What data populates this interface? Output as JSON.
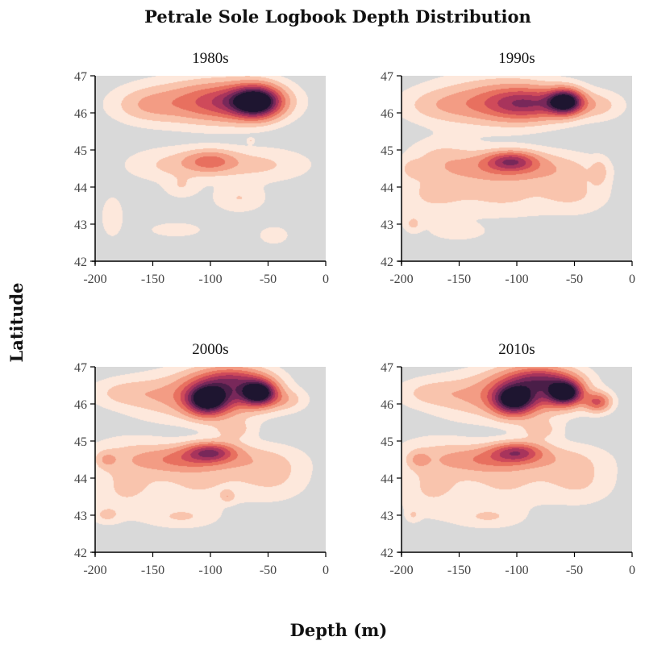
{
  "figure": {
    "title": "Petrale Sole Logbook Depth Distribution",
    "xlabel": "Depth (m)",
    "ylabel": "Latitude"
  },
  "colors": {
    "background": "#d9d9d9",
    "levels": [
      "#fde8dc",
      "#f9c4ad",
      "#f39c84",
      "#e8705f",
      "#cf4a5a",
      "#a8345c",
      "#78285a",
      "#4a1e48",
      "#1e1530"
    ]
  },
  "chart_data": [
    {
      "type": "heatmap",
      "title": "1980s",
      "xlim": [
        -200,
        0
      ],
      "ylim": [
        42,
        47
      ],
      "xticks": [
        -200,
        -150,
        -100,
        -50,
        0
      ],
      "yticks": [
        42,
        43,
        44,
        45,
        46,
        47
      ],
      "density": [
        {
          "x": -60,
          "y": 46.3,
          "sx": 14,
          "sy": 0.28,
          "w": 1.0
        },
        {
          "x": -80,
          "y": 46.3,
          "sx": 28,
          "sy": 0.35,
          "w": 0.45
        },
        {
          "x": -115,
          "y": 46.3,
          "sx": 35,
          "sy": 0.4,
          "w": 0.22
        },
        {
          "x": -155,
          "y": 46.2,
          "sx": 20,
          "sy": 0.3,
          "w": 0.14
        },
        {
          "x": -100,
          "y": 44.7,
          "sx": 15,
          "sy": 0.2,
          "w": 0.3
        },
        {
          "x": -130,
          "y": 44.6,
          "sx": 28,
          "sy": 0.3,
          "w": 0.14
        },
        {
          "x": -60,
          "y": 44.6,
          "sx": 30,
          "sy": 0.3,
          "w": 0.14
        },
        {
          "x": -125,
          "y": 44.0,
          "sx": 10,
          "sy": 0.2,
          "w": 0.1
        },
        {
          "x": -75,
          "y": 43.7,
          "sx": 15,
          "sy": 0.25,
          "w": 0.12
        },
        {
          "x": -185,
          "y": 43.2,
          "sx": 6,
          "sy": 0.35,
          "w": 0.12
        },
        {
          "x": -130,
          "y": 42.85,
          "sx": 14,
          "sy": 0.12,
          "w": 0.12
        },
        {
          "x": -45,
          "y": 42.7,
          "sx": 8,
          "sy": 0.15,
          "w": 0.12
        },
        {
          "x": -65,
          "y": 45.25,
          "sx": 2,
          "sy": 0.05,
          "w": 0.1
        }
      ]
    },
    {
      "type": "heatmap",
      "title": "1990s",
      "xlim": [
        -200,
        0
      ],
      "ylim": [
        42,
        47
      ],
      "xticks": [
        -200,
        -150,
        -100,
        -50,
        0
      ],
      "yticks": [
        42,
        43,
        44,
        45,
        46,
        47
      ],
      "density": [
        {
          "x": -58,
          "y": 46.3,
          "sx": 10,
          "sy": 0.22,
          "w": 1.0
        },
        {
          "x": -90,
          "y": 46.25,
          "sx": 25,
          "sy": 0.3,
          "w": 0.55
        },
        {
          "x": -120,
          "y": 46.3,
          "sx": 35,
          "sy": 0.45,
          "w": 0.25
        },
        {
          "x": -165,
          "y": 46.2,
          "sx": 25,
          "sy": 0.3,
          "w": 0.13
        },
        {
          "x": -30,
          "y": 46.2,
          "sx": 15,
          "sy": 0.25,
          "w": 0.15
        },
        {
          "x": -105,
          "y": 44.7,
          "sx": 15,
          "sy": 0.18,
          "w": 0.5
        },
        {
          "x": -120,
          "y": 44.5,
          "sx": 30,
          "sy": 0.3,
          "w": 0.25
        },
        {
          "x": -70,
          "y": 44.5,
          "sx": 30,
          "sy": 0.3,
          "w": 0.15
        },
        {
          "x": -165,
          "y": 44.8,
          "sx": 20,
          "sy": 0.35,
          "w": 0.12
        },
        {
          "x": -190,
          "y": 44.5,
          "sx": 6,
          "sy": 0.15,
          "w": 0.12
        },
        {
          "x": -175,
          "y": 43.8,
          "sx": 25,
          "sy": 0.5,
          "w": 0.12
        },
        {
          "x": -110,
          "y": 43.7,
          "sx": 30,
          "sy": 0.35,
          "w": 0.12
        },
        {
          "x": -50,
          "y": 43.8,
          "sx": 20,
          "sy": 0.35,
          "w": 0.12
        },
        {
          "x": -28,
          "y": 44.4,
          "sx": 5,
          "sy": 0.25,
          "w": 0.12
        },
        {
          "x": -190,
          "y": 43.0,
          "sx": 5,
          "sy": 0.15,
          "w": 0.12
        },
        {
          "x": -150,
          "y": 42.8,
          "sx": 15,
          "sy": 0.15,
          "w": 0.1
        }
      ]
    },
    {
      "type": "heatmap",
      "title": "2000s",
      "xlim": [
        -200,
        0
      ],
      "ylim": [
        42,
        47
      ],
      "xticks": [
        -200,
        -150,
        -100,
        -50,
        0
      ],
      "yticks": [
        42,
        43,
        44,
        45,
        46,
        47
      ],
      "density": [
        {
          "x": -58,
          "y": 46.3,
          "sx": 10,
          "sy": 0.22,
          "w": 1.0
        },
        {
          "x": -103,
          "y": 46.1,
          "sx": 12,
          "sy": 0.28,
          "w": 0.85
        },
        {
          "x": -85,
          "y": 46.35,
          "sx": 25,
          "sy": 0.4,
          "w": 0.55
        },
        {
          "x": -80,
          "y": 46.7,
          "sx": 18,
          "sy": 0.2,
          "w": 0.25
        },
        {
          "x": -130,
          "y": 46.2,
          "sx": 30,
          "sy": 0.4,
          "w": 0.2
        },
        {
          "x": -175,
          "y": 46.3,
          "sx": 20,
          "sy": 0.25,
          "w": 0.12
        },
        {
          "x": -35,
          "y": 46.1,
          "sx": 12,
          "sy": 0.2,
          "w": 0.15
        },
        {
          "x": -100,
          "y": 44.7,
          "sx": 15,
          "sy": 0.18,
          "w": 0.55
        },
        {
          "x": -125,
          "y": 44.5,
          "sx": 25,
          "sy": 0.25,
          "w": 0.3
        },
        {
          "x": -70,
          "y": 44.5,
          "sx": 30,
          "sy": 0.3,
          "w": 0.15
        },
        {
          "x": -170,
          "y": 44.6,
          "sx": 25,
          "sy": 0.35,
          "w": 0.12
        },
        {
          "x": -190,
          "y": 44.5,
          "sx": 6,
          "sy": 0.15,
          "w": 0.15
        },
        {
          "x": -80,
          "y": 45.3,
          "sx": 12,
          "sy": 0.2,
          "w": 0.15
        },
        {
          "x": -175,
          "y": 43.7,
          "sx": 20,
          "sy": 0.5,
          "w": 0.12
        },
        {
          "x": -110,
          "y": 43.8,
          "sx": 30,
          "sy": 0.4,
          "w": 0.12
        },
        {
          "x": -45,
          "y": 44.0,
          "sx": 20,
          "sy": 0.4,
          "w": 0.12
        },
        {
          "x": -85,
          "y": 43.5,
          "sx": 4,
          "sy": 0.1,
          "w": 0.15
        },
        {
          "x": -190,
          "y": 43.0,
          "sx": 8,
          "sy": 0.15,
          "w": 0.12
        },
        {
          "x": -125,
          "y": 42.95,
          "sx": 20,
          "sy": 0.2,
          "w": 0.12
        }
      ]
    },
    {
      "type": "heatmap",
      "title": "2010s",
      "xlim": [
        -200,
        0
      ],
      "ylim": [
        42,
        47
      ],
      "xticks": [
        -200,
        -150,
        -100,
        -50,
        0
      ],
      "yticks": [
        42,
        43,
        44,
        45,
        46,
        47
      ],
      "density": [
        {
          "x": -58,
          "y": 46.3,
          "sx": 10,
          "sy": 0.22,
          "w": 1.0
        },
        {
          "x": -103,
          "y": 46.1,
          "sx": 12,
          "sy": 0.28,
          "w": 0.8
        },
        {
          "x": -85,
          "y": 46.4,
          "sx": 25,
          "sy": 0.4,
          "w": 0.55
        },
        {
          "x": -78,
          "y": 46.7,
          "sx": 18,
          "sy": 0.2,
          "w": 0.3
        },
        {
          "x": -130,
          "y": 46.2,
          "sx": 30,
          "sy": 0.4,
          "w": 0.2
        },
        {
          "x": -175,
          "y": 46.3,
          "sx": 20,
          "sy": 0.25,
          "w": 0.12
        },
        {
          "x": -30,
          "y": 46.05,
          "sx": 8,
          "sy": 0.18,
          "w": 0.45
        },
        {
          "x": -100,
          "y": 44.7,
          "sx": 15,
          "sy": 0.18,
          "w": 0.5
        },
        {
          "x": -125,
          "y": 44.5,
          "sx": 25,
          "sy": 0.25,
          "w": 0.28
        },
        {
          "x": -70,
          "y": 44.5,
          "sx": 30,
          "sy": 0.3,
          "w": 0.15
        },
        {
          "x": -170,
          "y": 44.6,
          "sx": 25,
          "sy": 0.35,
          "w": 0.12
        },
        {
          "x": -185,
          "y": 44.5,
          "sx": 6,
          "sy": 0.15,
          "w": 0.15
        },
        {
          "x": -80,
          "y": 45.3,
          "sx": 12,
          "sy": 0.2,
          "w": 0.15
        },
        {
          "x": -175,
          "y": 43.7,
          "sx": 20,
          "sy": 0.5,
          "w": 0.12
        },
        {
          "x": -110,
          "y": 43.8,
          "sx": 30,
          "sy": 0.4,
          "w": 0.12
        },
        {
          "x": -45,
          "y": 43.9,
          "sx": 20,
          "sy": 0.4,
          "w": 0.12
        },
        {
          "x": -125,
          "y": 42.95,
          "sx": 20,
          "sy": 0.2,
          "w": 0.12
        },
        {
          "x": -190,
          "y": 43.0,
          "sx": 4,
          "sy": 0.12,
          "w": 0.1
        }
      ]
    }
  ]
}
